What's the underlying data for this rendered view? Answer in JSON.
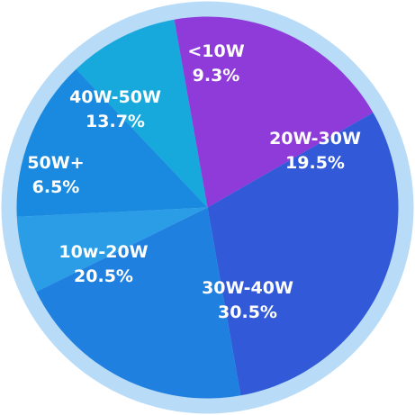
{
  "chart_data": {
    "type": "pie",
    "title": "",
    "slices": [
      {
        "label": "<10W",
        "percent": "9.3%",
        "value": 9.3,
        "color": "#17a9dc"
      },
      {
        "label": "20W-30W",
        "percent": "19.5%",
        "value": 19.5,
        "color": "#8e3bd9"
      },
      {
        "label": "30W-40W",
        "percent": "30.5%",
        "value": 30.5,
        "color": "#3159d8"
      },
      {
        "label": "10w-20W",
        "percent": "20.5%",
        "value": 20.5,
        "color": "#1f80df"
      },
      {
        "label": "50W+",
        "percent": "6.5%",
        "value": 6.5,
        "color": "#2a9de6"
      },
      {
        "label": "40W-50W",
        "percent": "13.7%",
        "value": 13.7,
        "color": "#1a8ae0"
      }
    ],
    "outer_ring_color": "#b8dbf7",
    "label_color": "#ffffff",
    "legend": "none"
  }
}
